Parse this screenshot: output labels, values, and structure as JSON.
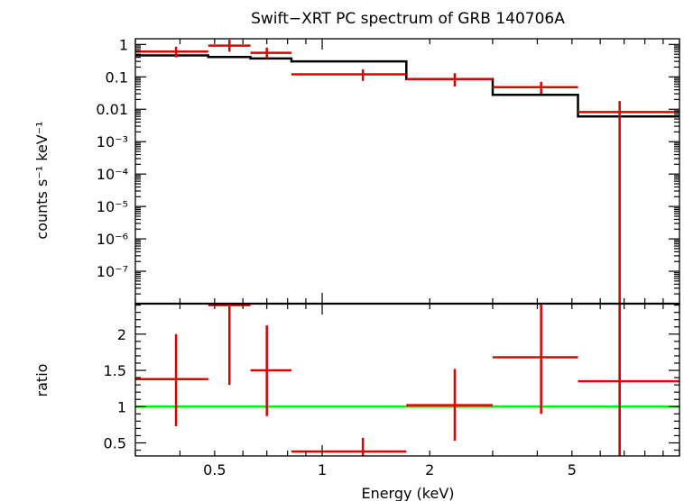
{
  "chart_data": [
    {
      "panel": "spectrum",
      "type": "scatter",
      "title": "Swift−XRT PC spectrum of GRB 140706A",
      "xlabel": "Energy (keV)",
      "ylabel": "counts s⁻¹ keV⁻¹",
      "xscale": "log",
      "yscale": "log",
      "xlim": [
        0.3,
        10
      ],
      "ylim": [
        1e-08,
        1.5
      ],
      "y_ticks": [
        {
          "value": 1,
          "label": "1"
        },
        {
          "value": 0.1,
          "label": "0.1"
        },
        {
          "value": 0.01,
          "label": "0.01"
        },
        {
          "value": 0.001,
          "label": "10⁻³"
        },
        {
          "value": 0.0001,
          "label": "10⁻⁴"
        },
        {
          "value": 1e-05,
          "label": "10⁻⁵"
        },
        {
          "value": 1e-06,
          "label": "10⁻⁶"
        },
        {
          "value": 1e-07,
          "label": "10⁻⁷"
        }
      ],
      "series": [
        {
          "kind": "data",
          "color": "#e00000",
          "points": [
            {
              "x": 0.39,
              "xlo": 0.3,
              "xhi": 0.48,
              "y": 0.6,
              "ylo": 0.4,
              "yhi": 0.85
            },
            {
              "x": 0.55,
              "xlo": 0.48,
              "xhi": 0.63,
              "y": 0.92,
              "ylo": 0.6,
              "yhi": 1.4
            },
            {
              "x": 0.7,
              "xlo": 0.63,
              "xhi": 0.82,
              "y": 0.55,
              "ylo": 0.37,
              "yhi": 0.8
            },
            {
              "x": 1.3,
              "xlo": 0.82,
              "xhi": 1.72,
              "y": 0.12,
              "ylo": 0.075,
              "yhi": 0.17
            },
            {
              "x": 2.35,
              "xlo": 1.72,
              "xhi": 3.0,
              "y": 0.085,
              "ylo": 0.05,
              "yhi": 0.13
            },
            {
              "x": 4.1,
              "xlo": 3.0,
              "xhi": 5.2,
              "y": 0.048,
              "ylo": 0.03,
              "yhi": 0.07
            },
            {
              "x": 6.8,
              "xlo": 5.2,
              "xhi": 10.0,
              "y": 0.0082,
              "ylo": 1e-08,
              "yhi": 0.018
            }
          ]
        },
        {
          "kind": "model",
          "color": "#000000",
          "steps": [
            {
              "xlo": 0.3,
              "xhi": 0.48,
              "y": 0.46
            },
            {
              "xlo": 0.48,
              "xhi": 0.63,
              "y": 0.41
            },
            {
              "xlo": 0.63,
              "xhi": 0.82,
              "y": 0.37
            },
            {
              "xlo": 0.82,
              "xhi": 1.72,
              "y": 0.3
            },
            {
              "xlo": 1.72,
              "xhi": 3.0,
              "y": 0.085
            },
            {
              "xlo": 3.0,
              "xhi": 5.2,
              "y": 0.028
            },
            {
              "xlo": 5.2,
              "xhi": 10.0,
              "y": 0.006
            }
          ]
        }
      ]
    },
    {
      "panel": "ratio",
      "type": "scatter",
      "xlabel": "Energy (keV)",
      "ylabel": "ratio",
      "xscale": "log",
      "yscale": "linear",
      "xlim": [
        0.3,
        10
      ],
      "ylim": [
        0.32,
        2.42
      ],
      "x_ticks": [
        {
          "value": 0.5,
          "label": "0.5"
        },
        {
          "value": 1,
          "label": "1"
        },
        {
          "value": 2,
          "label": "2"
        },
        {
          "value": 5,
          "label": "5"
        }
      ],
      "y_ticks": [
        {
          "value": 0.5,
          "label": "0.5"
        },
        {
          "value": 1,
          "label": "1"
        },
        {
          "value": 1.5,
          "label": "1.5"
        },
        {
          "value": 2,
          "label": "2"
        }
      ],
      "reference_line": {
        "y": 1,
        "color": "#00ee00"
      },
      "series": [
        {
          "kind": "data",
          "color": "#e00000",
          "points": [
            {
              "x": 0.39,
              "xlo": 0.3,
              "xhi": 0.48,
              "y": 1.38,
              "ylo": 0.73,
              "yhi": 2.0
            },
            {
              "x": 0.55,
              "xlo": 0.48,
              "xhi": 0.63,
              "y": 2.4,
              "ylo": 1.3,
              "yhi": 2.42
            },
            {
              "x": 0.7,
              "xlo": 0.63,
              "xhi": 0.82,
              "y": 1.5,
              "ylo": 0.87,
              "yhi": 2.12
            },
            {
              "x": 1.3,
              "xlo": 0.82,
              "xhi": 1.72,
              "y": 0.38,
              "ylo": 0.32,
              "yhi": 0.57
            },
            {
              "x": 2.35,
              "xlo": 1.72,
              "xhi": 3.0,
              "y": 1.02,
              "ylo": 0.53,
              "yhi": 1.52
            },
            {
              "x": 4.1,
              "xlo": 3.0,
              "xhi": 5.2,
              "y": 1.68,
              "ylo": 0.9,
              "yhi": 2.42
            },
            {
              "x": 6.8,
              "xlo": 5.2,
              "xhi": 10.0,
              "y": 1.35,
              "ylo": 0.32,
              "yhi": 2.42
            }
          ]
        }
      ]
    }
  ]
}
